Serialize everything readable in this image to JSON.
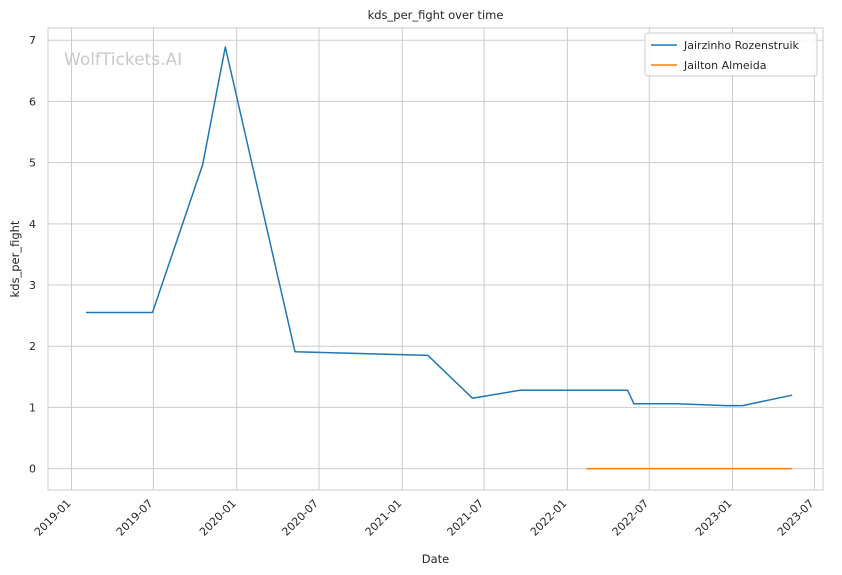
{
  "chart_data": {
    "type": "line",
    "title": "kds_per_fight over time",
    "xlabel": "Date",
    "ylabel": "kds_per_fight",
    "watermark": "WolfTickets.AI",
    "xlim": [
      "2018-11-10",
      "2023-07-20"
    ],
    "ylim": [
      -0.35,
      7.2
    ],
    "x_ticks": [
      "2019-01",
      "2019-07",
      "2020-01",
      "2020-07",
      "2021-01",
      "2021-07",
      "2022-01",
      "2022-07",
      "2023-01",
      "2023-07"
    ],
    "y_ticks": [
      0,
      1,
      2,
      3,
      4,
      5,
      6,
      7
    ],
    "grid": true,
    "legend_position": "top-right",
    "series": [
      {
        "name": "Jairzinho Rozenstruik",
        "color": "#1f77b4",
        "points": [
          {
            "x": "2019-02-02",
            "y": 2.55
          },
          {
            "x": "2019-06-29",
            "y": 2.55
          },
          {
            "x": "2019-10-18",
            "y": 4.97
          },
          {
            "x": "2019-12-07",
            "y": 6.89
          },
          {
            "x": "2020-05-09",
            "y": 1.91
          },
          {
            "x": "2021-02-27",
            "y": 1.85
          },
          {
            "x": "2021-06-05",
            "y": 1.15
          },
          {
            "x": "2021-09-18",
            "y": 1.28
          },
          {
            "x": "2022-05-14",
            "y": 1.28
          },
          {
            "x": "2022-05-28",
            "y": 1.06
          },
          {
            "x": "2022-08-31",
            "y": 1.06
          },
          {
            "x": "2022-12-17",
            "y": 1.03
          },
          {
            "x": "2023-01-23",
            "y": 1.03
          },
          {
            "x": "2023-05-13",
            "y": 1.2
          }
        ]
      },
      {
        "name": "Jailton Almeida",
        "color": "#ff7f0e",
        "points": [
          {
            "x": "2022-02-12",
            "y": 0
          },
          {
            "x": "2023-05-13",
            "y": 0
          }
        ]
      }
    ]
  }
}
